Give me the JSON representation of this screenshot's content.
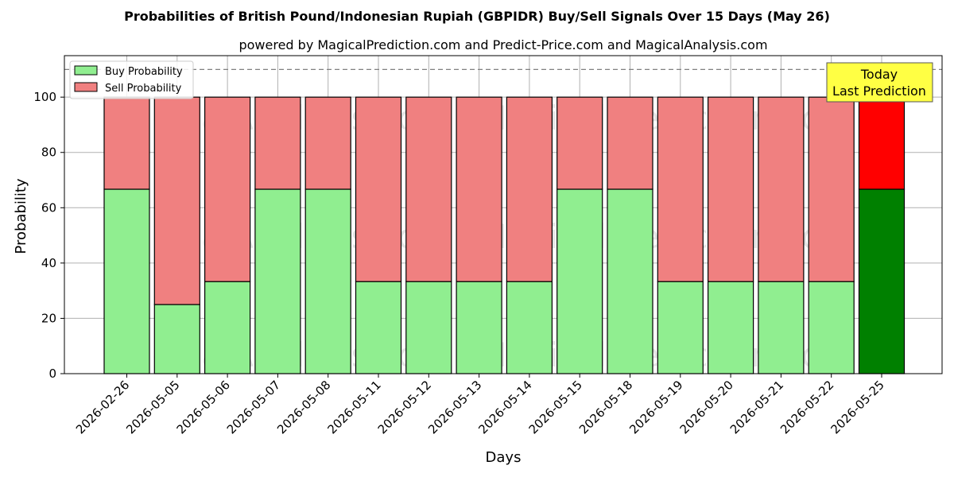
{
  "chart_data": {
    "type": "bar",
    "stacked": true,
    "title": "Probabilities of British Pound/Indonesian Rupiah (GBPIDR) Buy/Sell Signals Over 15 Days (May 26)",
    "subtitle": "powered by MagicalPrediction.com and Predict-Price.com and MagicalAnalysis.com",
    "xlabel": "Days",
    "ylabel": "Probability",
    "ylim": [
      0,
      115
    ],
    "yticks": [
      0,
      20,
      40,
      60,
      80,
      100
    ],
    "reference_line": 110,
    "grid": true,
    "legend_placement": "top-left",
    "categories": [
      "2026-02-26",
      "2026-05-05",
      "2026-05-06",
      "2026-05-07",
      "2026-05-08",
      "2026-05-11",
      "2026-05-12",
      "2026-05-13",
      "2026-05-14",
      "2026-05-15",
      "2026-05-18",
      "2026-05-19",
      "2026-05-20",
      "2026-05-21",
      "2026-05-22",
      "2026-05-25"
    ],
    "series": [
      {
        "name": "Buy Probability",
        "color": "#90ee90",
        "highlight_color": "#008000",
        "values": [
          66.7,
          25,
          33.3,
          66.7,
          66.7,
          33.3,
          33.3,
          33.3,
          33.3,
          66.7,
          66.7,
          33.3,
          33.3,
          33.3,
          33.3,
          66.7
        ]
      },
      {
        "name": "Sell Probability",
        "color": "#f08080",
        "highlight_color": "#ff0000",
        "values": [
          33.3,
          75,
          66.7,
          33.3,
          33.3,
          66.7,
          66.7,
          66.7,
          66.7,
          33.3,
          33.3,
          66.7,
          66.7,
          66.7,
          66.7,
          33.3
        ]
      }
    ],
    "annotation": {
      "line1": "Today",
      "line2": "Last Prediction",
      "color": "#ffff44"
    },
    "watermarks": [
      "MagicalAnalysis.com",
      "MagicalPrediction.com"
    ]
  }
}
